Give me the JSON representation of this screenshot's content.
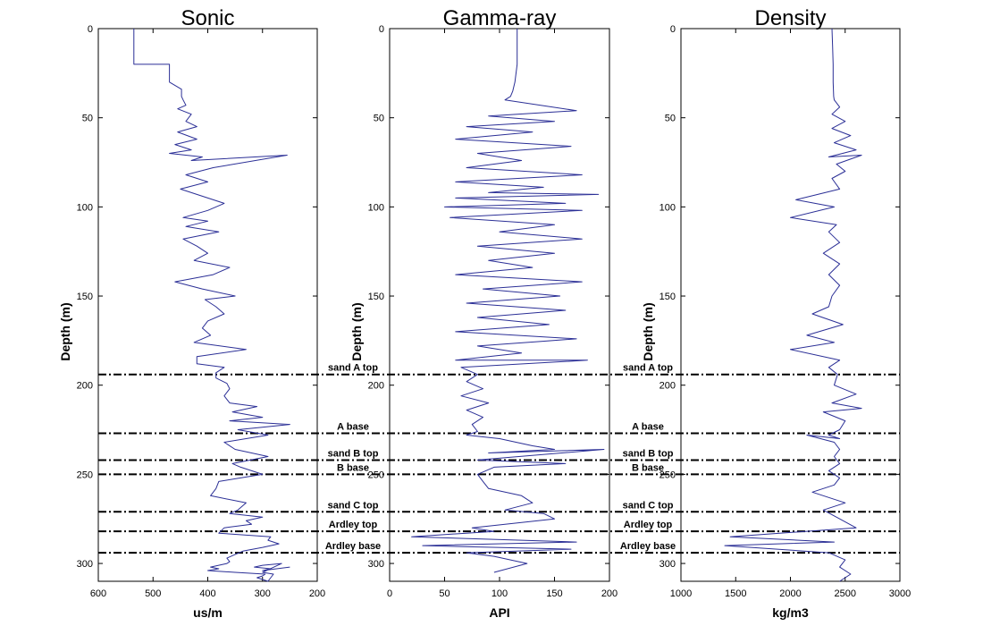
{
  "chart_data": [
    {
      "type": "line",
      "title": "Sonic",
      "xlabel": "us/m",
      "ylabel": "Depth (m)",
      "xlim": [
        600,
        200
      ],
      "xticks": [
        600,
        500,
        400,
        300,
        200
      ],
      "ylim": [
        0,
        310
      ],
      "yticks": [
        0,
        50,
        100,
        150,
        200,
        250,
        300
      ],
      "series": [
        {
          "x": [
            535,
            535,
            535,
            535,
            470,
            470,
            448,
            448,
            445,
            440,
            455,
            430,
            440,
            420,
            455,
            420,
            460,
            430,
            470,
            410,
            430,
            255,
            390,
            440,
            400,
            450,
            410,
            370,
            400,
            445,
            400,
            440,
            380,
            445,
            420,
            400,
            425,
            360,
            390,
            460,
            410,
            350,
            405,
            385,
            370,
            400,
            410,
            395,
            425,
            330,
            420,
            420,
            370,
            385,
            385,
            365,
            360,
            370,
            360,
            310,
            355,
            300,
            360,
            250,
            345,
            290,
            370,
            350,
            290,
            355,
            340,
            300,
            380,
            385,
            395,
            330,
            345,
            360,
            300,
            330,
            320,
            370,
            380,
            285,
            290,
            270,
            300,
            335,
            350,
            365,
            360,
            365,
            395,
            380,
            400,
            350,
            295,
            300,
            310,
            300,
            290,
            280,
            300,
            265,
            300,
            315,
            285,
            300,
            250
          ],
          "y": [
            0,
            10,
            18,
            20,
            20,
            30,
            34,
            38,
            40,
            43,
            45,
            48,
            52,
            55,
            58,
            62,
            65,
            68,
            70,
            72,
            74,
            71,
            78,
            82,
            86,
            90,
            94,
            98,
            102,
            106,
            108,
            111,
            114,
            118,
            122,
            126,
            130,
            134,
            138,
            142,
            146,
            150,
            152,
            156,
            160,
            164,
            168,
            172,
            176,
            180,
            184,
            188,
            190,
            193,
            196,
            199,
            202,
            206,
            210,
            212,
            215,
            218,
            220,
            222,
            225,
            228,
            232,
            236,
            240,
            244,
            246,
            250,
            254,
            258,
            262,
            266,
            270,
            272,
            274,
            276,
            278,
            280,
            283,
            285,
            287,
            289,
            291,
            293,
            295,
            297,
            299,
            300,
            302,
            303,
            304,
            305,
            306,
            307,
            308,
            309,
            310,
            306,
            305,
            300,
            301,
            302,
            303,
            304,
            302
          ]
        }
      ]
    },
    {
      "type": "line",
      "title": "Gamma-ray",
      "xlabel": "API",
      "ylabel": "Depth (m)",
      "xlim": [
        0,
        200
      ],
      "xticks": [
        0,
        50,
        100,
        150,
        200
      ],
      "ylim": [
        0,
        310
      ],
      "yticks": [
        0,
        50,
        100,
        150,
        200,
        250,
        300
      ],
      "series": [
        {
          "x": [
            116,
            116,
            116,
            114,
            112,
            110,
            105,
            170,
            90,
            150,
            70,
            130,
            60,
            165,
            80,
            120,
            70,
            175,
            60,
            140,
            90,
            190,
            60,
            160,
            50,
            175,
            55,
            150,
            100,
            175,
            80,
            150,
            90,
            130,
            60,
            175,
            85,
            155,
            70,
            160,
            80,
            145,
            60,
            170,
            80,
            120,
            60,
            180,
            65,
            80,
            70,
            85,
            65,
            90,
            70,
            85,
            75,
            80,
            70,
            100,
            130,
            150,
            90,
            195,
            80,
            160,
            95,
            80,
            85,
            90,
            120,
            130,
            105,
            140,
            150,
            75,
            95,
            20,
            170,
            30,
            165,
            70,
            95,
            125,
            95
          ],
          "y": [
            0,
            10,
            20,
            30,
            35,
            38,
            40,
            46,
            49,
            52,
            55,
            58,
            62,
            66,
            70,
            74,
            78,
            82,
            86,
            89,
            92,
            93,
            95,
            98,
            100,
            102,
            106,
            110,
            114,
            118,
            122,
            126,
            130,
            134,
            138,
            142,
            146,
            150,
            154,
            158,
            162,
            166,
            170,
            174,
            178,
            182,
            186,
            186,
            190,
            194,
            198,
            202,
            206,
            210,
            214,
            218,
            222,
            226,
            228,
            230,
            234,
            236,
            238,
            236,
            242,
            244,
            246,
            250,
            254,
            258,
            262,
            266,
            270,
            272,
            275,
            280,
            282,
            285,
            288,
            290,
            292,
            294,
            296,
            300,
            305
          ]
        }
      ]
    },
    {
      "type": "line",
      "title": "Density",
      "xlabel": "kg/m3",
      "ylabel": "Depth (m)",
      "xlim": [
        1000,
        3000
      ],
      "xticks": [
        1000,
        1500,
        2000,
        2500,
        3000
      ],
      "ylim": [
        0,
        310
      ],
      "yticks": [
        0,
        50,
        100,
        150,
        200,
        250,
        300
      ],
      "series": [
        {
          "x": [
            2380,
            2385,
            2390,
            2390,
            2395,
            2400,
            2450,
            2380,
            2500,
            2380,
            2550,
            2400,
            2600,
            2350,
            2650,
            2420,
            2500,
            2380,
            2450,
            2050,
            2400,
            2000,
            2420,
            2350,
            2450,
            2300,
            2450,
            2350,
            2450,
            2380,
            2350,
            2200,
            2480,
            2150,
            2400,
            2000,
            2450,
            2350,
            2430,
            2400,
            2600,
            2380,
            2650,
            2300,
            2500,
            2450,
            2350,
            2450,
            2150,
            2400,
            2450,
            2400,
            2450,
            2350,
            2450,
            2400,
            2200,
            2500,
            2300,
            2450,
            2600,
            1450,
            2400,
            1400,
            2350,
            2500,
            2450,
            2550,
            2450
          ],
          "y": [
            0,
            10,
            20,
            30,
            38,
            40,
            44,
            48,
            52,
            56,
            60,
            64,
            68,
            72,
            71,
            76,
            80,
            84,
            90,
            96,
            100,
            106,
            110,
            114,
            120,
            126,
            132,
            138,
            144,
            150,
            156,
            160,
            166,
            172,
            176,
            180,
            186,
            190,
            194,
            200,
            205,
            210,
            213,
            215,
            220,
            225,
            228,
            230,
            228,
            232,
            236,
            240,
            244,
            248,
            252,
            256,
            260,
            266,
            270,
            275,
            280,
            285,
            288,
            290,
            294,
            298,
            302,
            306,
            310
          ]
        }
      ]
    }
  ],
  "markers": [
    {
      "label": "sand A top",
      "depth": 194
    },
    {
      "label": "A base",
      "depth": 227
    },
    {
      "label": "sand B top",
      "depth": 242
    },
    {
      "label": "B base",
      "depth": 250
    },
    {
      "label": "sand C top",
      "depth": 271
    },
    {
      "label": "Ardley top",
      "depth": 282
    },
    {
      "label": "Ardley base",
      "depth": 294
    }
  ],
  "style": {
    "line_color": "#2b2f96",
    "marker_color": "#000000"
  }
}
